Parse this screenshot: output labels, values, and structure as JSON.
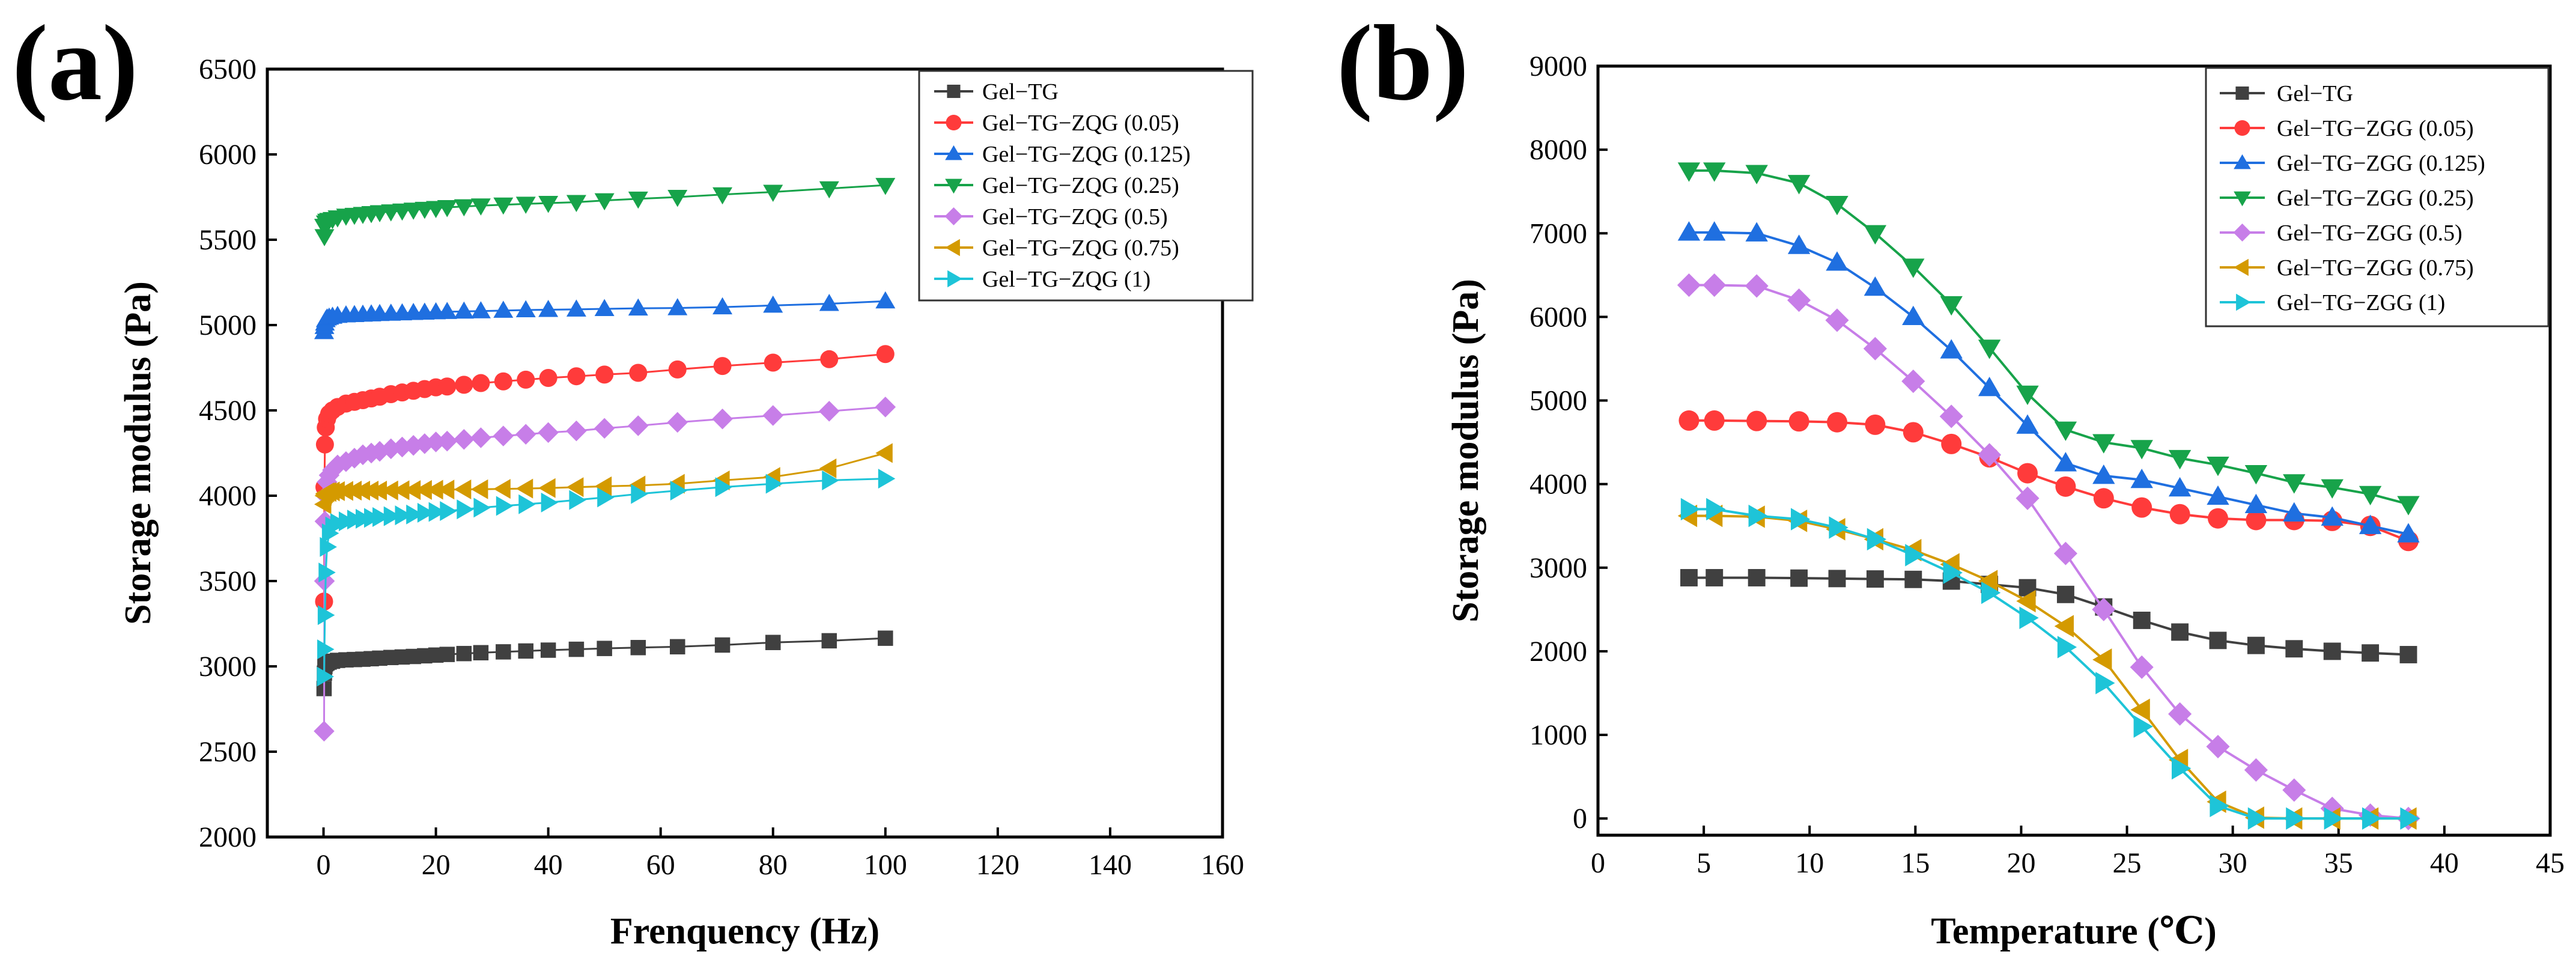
{
  "panels": [
    {
      "label": "(a)",
      "chart_data": {
        "type": "scatter",
        "title": "",
        "xlabel": "Frenquency (Hz)",
        "ylabel": "Storage modulus (Pa)",
        "xlim": [
          -10,
          160
        ],
        "ylim": [
          2000,
          6500
        ],
        "xticks": [
          0,
          20,
          40,
          60,
          80,
          100,
          120,
          140,
          160
        ],
        "yticks": [
          2000,
          2500,
          3000,
          3500,
          4000,
          4500,
          5000,
          5500,
          6000,
          6500
        ],
        "legend_position": "top-right",
        "x": [
          0.1,
          0.16,
          0.25,
          0.4,
          0.63,
          1,
          1.6,
          2.5,
          4,
          5.5,
          7,
          8.5,
          10,
          12,
          14,
          16,
          18,
          20,
          22,
          25,
          28,
          32,
          36,
          40,
          45,
          50,
          56,
          63,
          71,
          80,
          90,
          100
        ],
        "series": [
          {
            "name": "Gel−TG",
            "color": "#404040",
            "marker": "square",
            "values": [
              2870,
              2960,
              3000,
              3015,
              3020,
              3025,
              3030,
              3035,
              3038,
              3040,
              3042,
              3045,
              3048,
              3052,
              3055,
              3058,
              3062,
              3066,
              3070,
              3075,
              3080,
              3085,
              3090,
              3095,
              3100,
              3105,
              3110,
              3115,
              3125,
              3140,
              3150,
              3165
            ]
          },
          {
            "name": "Gel−TG−ZQG (0.05)",
            "color": "#ff3b3b",
            "marker": "circle",
            "values": [
              3380,
              4050,
              4300,
              4400,
              4450,
              4480,
              4500,
              4520,
              4540,
              4550,
              4560,
              4570,
              4580,
              4595,
              4605,
              4615,
              4625,
              4635,
              4640,
              4650,
              4660,
              4670,
              4680,
              4690,
              4700,
              4710,
              4720,
              4740,
              4760,
              4780,
              4800,
              4830
            ]
          },
          {
            "name": "Gel−TG−ZQG (0.125)",
            "color": "#1f6fe0",
            "marker": "triangle-up",
            "values": [
              4960,
              4990,
              5010,
              5030,
              5040,
              5045,
              5050,
              5055,
              5058,
              5060,
              5062,
              5064,
              5066,
              5068,
              5070,
              5072,
              5074,
              5076,
              5078,
              5080,
              5082,
              5085,
              5088,
              5090,
              5092,
              5095,
              5098,
              5100,
              5105,
              5115,
              5125,
              5140
            ]
          },
          {
            "name": "Gel−TG−ZQG (0.25)",
            "color": "#17a34a",
            "marker": "triangle-down",
            "values": [
              5580,
              5520,
              5580,
              5600,
              5610,
              5615,
              5620,
              5630,
              5640,
              5645,
              5650,
              5655,
              5660,
              5665,
              5670,
              5675,
              5680,
              5685,
              5690,
              5695,
              5700,
              5705,
              5710,
              5715,
              5720,
              5730,
              5740,
              5750,
              5765,
              5780,
              5800,
              5820
            ]
          },
          {
            "name": "Gel−TG−ZQG (0.5)",
            "color": "#c77ee8",
            "marker": "diamond",
            "values": [
              2620,
              3500,
              3850,
              4000,
              4080,
              4120,
              4150,
              4180,
              4200,
              4220,
              4240,
              4250,
              4260,
              4275,
              4285,
              4295,
              4305,
              4315,
              4320,
              4330,
              4340,
              4350,
              4360,
              4370,
              4380,
              4395,
              4410,
              4430,
              4450,
              4470,
              4495,
              4520
            ]
          },
          {
            "name": "Gel−TG−ZQG (0.75)",
            "color": "#d49a00",
            "marker": "triangle-left",
            "values": [
              3950,
              4000,
              4010,
              4015,
              4020,
              4022,
              4025,
              4027,
              4028,
              4030,
              4030,
              4030,
              4030,
              4031,
              4032,
              4033,
              4034,
              4035,
              4036,
              4037,
              4038,
              4040,
              4042,
              4045,
              4050,
              4055,
              4060,
              4070,
              4090,
              4110,
              4160,
              4250
            ]
          },
          {
            "name": "Gel−TG−ZQG (1)",
            "color": "#1ec4d8",
            "marker": "triangle-right",
            "values": [
              2940,
              3100,
              3300,
              3550,
              3700,
              3780,
              3820,
              3840,
              3850,
              3860,
              3865,
              3870,
              3875,
              3880,
              3885,
              3890,
              3900,
              3905,
              3910,
              3920,
              3930,
              3940,
              3950,
              3960,
              3975,
              3990,
              4010,
              4030,
              4050,
              4070,
              4090,
              4100
            ]
          }
        ]
      }
    },
    {
      "label": "(b)",
      "chart_data": {
        "type": "line",
        "title": "",
        "xlabel": "Temperature (℃)",
        "ylabel": "Storage modulus (Pa)",
        "xlim": [
          0,
          45
        ],
        "ylim": [
          -200,
          9000
        ],
        "xticks": [
          0,
          5,
          10,
          15,
          20,
          25,
          30,
          35,
          40,
          45
        ],
        "yticks": [
          0,
          1000,
          2000,
          3000,
          4000,
          5000,
          6000,
          7000,
          8000,
          9000
        ],
        "legend_position": "top-right",
        "x": [
          4.3,
          5.5,
          7.5,
          9.5,
          11.3,
          13.1,
          14.9,
          16.7,
          18.5,
          20.3,
          22.1,
          23.9,
          25.7,
          27.5,
          29.3,
          31.1,
          32.9,
          34.7,
          36.5,
          38.3
        ],
        "series": [
          {
            "name": "Gel−TG",
            "color": "#404040",
            "marker": "square",
            "values": [
              2880,
              2880,
              2880,
              2875,
              2870,
              2865,
              2860,
              2840,
              2800,
              2760,
              2680,
              2530,
              2370,
              2230,
              2130,
              2070,
              2030,
              2000,
              1980,
              1960
            ]
          },
          {
            "name": "Gel−TG−ZGG (0.05)",
            "color": "#ff3b3b",
            "marker": "circle",
            "values": [
              4760,
              4760,
              4755,
              4750,
              4740,
              4710,
              4620,
              4480,
              4320,
              4130,
              3970,
              3830,
              3720,
              3640,
              3590,
              3570,
              3570,
              3560,
              3500,
              3320
            ]
          },
          {
            "name": "Gel−TG−ZGG (0.125)",
            "color": "#1f6fe0",
            "marker": "triangle-up",
            "values": [
              7010,
              7010,
              7000,
              6850,
              6650,
              6350,
              6000,
              5600,
              5150,
              4700,
              4250,
              4100,
              4050,
              3950,
              3850,
              3750,
              3650,
              3600,
              3500,
              3400
            ]
          },
          {
            "name": "Gel−TG−ZGG (0.25)",
            "color": "#17a34a",
            "marker": "triangle-down",
            "values": [
              7750,
              7750,
              7720,
              7600,
              7350,
              7000,
              6600,
              6150,
              5630,
              5080,
              4650,
              4500,
              4430,
              4310,
              4230,
              4130,
              4020,
              3960,
              3880,
              3760
            ]
          },
          {
            "name": "Gel−TG−ZGG (0.5)",
            "color": "#c77ee8",
            "marker": "diamond",
            "values": [
              6380,
              6380,
              6370,
              6200,
              5960,
              5620,
              5230,
              4810,
              4350,
              3830,
              3170,
              2500,
              1810,
              1250,
              860,
              580,
              340,
              120,
              40,
              0
            ]
          },
          {
            "name": "Gel−TG−ZGG (0.75)",
            "color": "#d49a00",
            "marker": "triangle-left",
            "values": [
              3620,
              3620,
              3610,
              3560,
              3460,
              3340,
              3210,
              3040,
              2840,
              2600,
              2300,
              1900,
              1300,
              700,
              200,
              10,
              0,
              0,
              0,
              0
            ]
          },
          {
            "name": "Gel−TG−ZGG (1)",
            "color": "#1ec4d8",
            "marker": "triangle-right",
            "values": [
              3700,
              3700,
              3620,
              3580,
              3480,
              3340,
              3150,
              2940,
              2700,
              2400,
              2050,
              1620,
              1100,
              600,
              150,
              0,
              0,
              0,
              0,
              0
            ]
          }
        ]
      }
    }
  ]
}
